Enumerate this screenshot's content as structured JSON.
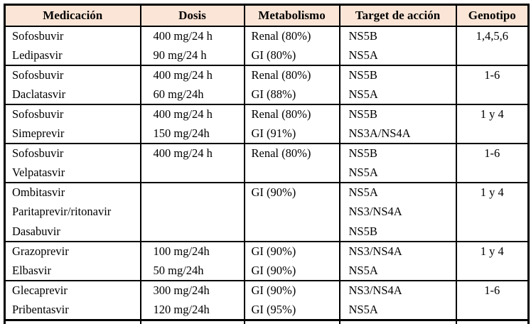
{
  "table": {
    "header_bg": "#fbe5d6",
    "border_color": "#000000",
    "headers": [
      "Medicación",
      "Dosis",
      "Metabolismo",
      "Target de acción",
      "Genotipo"
    ],
    "rows": [
      {
        "medication": [
          "Sofosbuvir",
          "Ledipasvir"
        ],
        "dose": [
          "400 mg/24 h",
          "90 mg/24 h"
        ],
        "metabolism": [
          "Renal (80%)",
          "GI (80%)"
        ],
        "target": [
          "NS5B",
          "NS5A"
        ],
        "genotype": "1,4,5,6"
      },
      {
        "medication": [
          "Sofosbuvir",
          "Daclatasvir"
        ],
        "dose": [
          "400 mg/24 h",
          "60 mg/24h"
        ],
        "metabolism": [
          "Renal (80%)",
          "GI (88%)"
        ],
        "target": [
          "NS5B",
          "NS5A"
        ],
        "genotype": "1-6"
      },
      {
        "medication": [
          "Sofosbuvir",
          "Simeprevir"
        ],
        "dose": [
          "400 mg/24 h",
          "150 mg/24h"
        ],
        "metabolism": [
          "Renal (80%)",
          "GI (91%)"
        ],
        "target": [
          "NS5B",
          "NS3A/NS4A"
        ],
        "genotype": "1 y 4"
      },
      {
        "medication": [
          "Sofosbuvir",
          "Velpatasvir"
        ],
        "dose": [
          "400 mg/24 h"
        ],
        "metabolism": [
          "Renal (80%)"
        ],
        "target": [
          "NS5B",
          "NS5A"
        ],
        "genotype": "1-6"
      },
      {
        "medication": [
          "Ombitasvir",
          "Paritaprevir/ritonavir",
          "Dasabuvir"
        ],
        "dose": [],
        "metabolism": [
          "GI (90%)"
        ],
        "target": [
          "NS5A",
          "NS3/NS4A",
          "NS5B"
        ],
        "genotype": "1 y 4"
      },
      {
        "medication": [
          "Grazoprevir",
          "Elbasvir"
        ],
        "dose": [
          "100 mg/24h",
          "50 mg/24h"
        ],
        "metabolism": [
          "GI (90%)",
          "GI (90%)"
        ],
        "target": [
          "NS3/NS4A",
          "NS5A"
        ],
        "genotype": "1 y 4"
      },
      {
        "medication": [
          "Glecaprevir",
          "Pribentasvir"
        ],
        "dose": [
          "300 mg/24h",
          "120 mg/24h"
        ],
        "metabolism": [
          "GI (90%)",
          "GI (95%)"
        ],
        "target": [
          "NS3/NS4A",
          "NS5A"
        ],
        "genotype": "1-6"
      }
    ]
  }
}
